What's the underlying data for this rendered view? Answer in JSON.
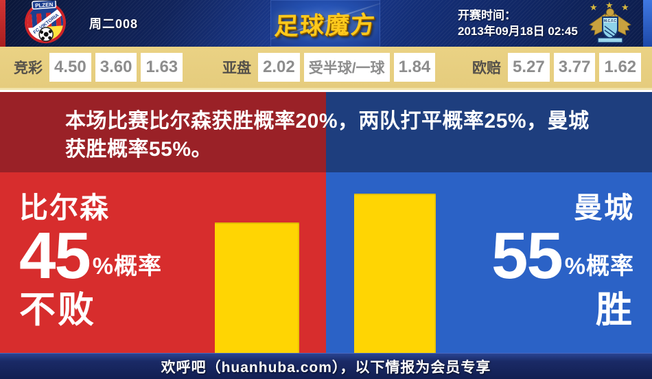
{
  "header": {
    "match_label": "周二008",
    "brand": "足球魔方",
    "kickoff_label": "开赛时间：",
    "kickoff_value": "2013年09月18日 02:45",
    "home_crest": "fc-viktoria-plzen",
    "away_crest": "manchester-city"
  },
  "odds_bar": {
    "groups": [
      {
        "label": "竞彩",
        "values": [
          "4.50",
          "3.60",
          "1.63"
        ]
      },
      {
        "label": "亚盘",
        "values": [
          "2.02",
          "受半球/一球",
          "1.84"
        ]
      },
      {
        "label": "欧赔",
        "values": [
          "5.27",
          "3.77",
          "1.62"
        ]
      }
    ]
  },
  "analysis": {
    "summary": "本场比赛比尔森获胜概率20%，两队打平概率25%，曼城获胜概率55%。"
  },
  "chart_data": {
    "type": "bar",
    "categories": [
      "比尔森不败",
      "曼城胜"
    ],
    "values": [
      45,
      55
    ],
    "unit": "%",
    "bar_color": "#ffd503",
    "stated_probabilities": {
      "home_win_pct": 20,
      "draw_pct": 25,
      "away_win_pct": 55
    }
  },
  "home_panel": {
    "team": "比尔森",
    "probability": "45",
    "prob_suffix": "%概率",
    "outcome": "不败"
  },
  "away_panel": {
    "team": "曼城",
    "probability": "55",
    "prob_suffix": "%概率",
    "outcome": "胜"
  },
  "footer": {
    "text": "欢呼吧（huanhuba.com），以下情报为会员专享"
  },
  "colors": {
    "bright_red": "#d72d2d",
    "bright_blue": "#2b62c6",
    "dark_red": "#9a2127",
    "dark_blue": "#1e3e7e",
    "gold_bar": "#ffd503",
    "odds_band_tan": "#e5cc7d",
    "header_navy": "#142f78",
    "brand_gold": "#ffc91c"
  }
}
